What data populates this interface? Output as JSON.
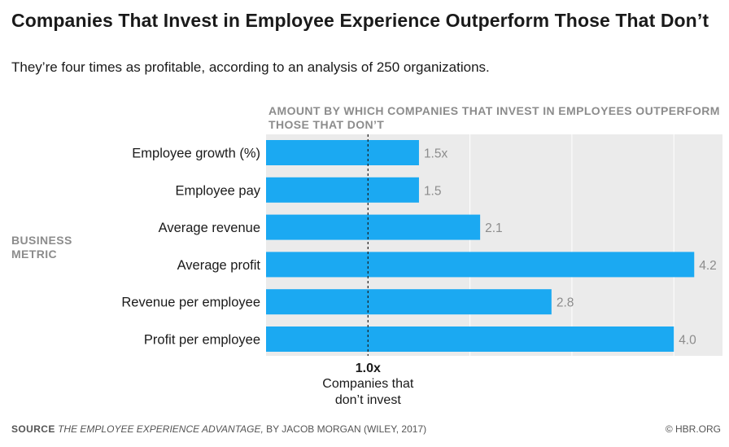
{
  "header": {
    "title": "Companies That Invest in Employee Experience Outperform Those That Don’t",
    "subtitle": "They’re four times as profitable, according to an analysis of 250 organizations."
  },
  "panel_heading": "AMOUNT BY WHICH COMPANIES THAT INVEST IN EMPLOYEES OUTPERFORM THOSE THAT DON’T",
  "y_group_label": "BUSINESS METRIC",
  "chart_data": {
    "type": "bar",
    "orientation": "horizontal",
    "categories": [
      "Employee growth (%)",
      "Employee pay",
      "Average revenue",
      "Average profit",
      "Revenue per employee",
      "Profit per employee"
    ],
    "values": [
      1.5,
      1.5,
      2.1,
      4.2,
      2.8,
      4.0
    ],
    "data_labels": [
      "1.5x",
      "1.5",
      "2.1",
      "4.2",
      "2.8",
      "4.0"
    ],
    "xlim": [
      0,
      4.3
    ],
    "grid": true,
    "baseline": {
      "value": 1.0,
      "label": "1.0x",
      "caption_line1": "Companies that",
      "caption_line2": "don’t invest"
    },
    "colors": {
      "bar": "#1ba9f2",
      "panel": "#ebebeb",
      "gridline": "#ffffff",
      "data_label": "#8c8c8c"
    }
  },
  "footer": {
    "source_key": "SOURCE",
    "source_book": "THE EMPLOYEE EXPERIENCE ADVANTAGE,",
    "source_rest": "BY JACOB MORGAN (WILEY, 2017)",
    "credit": "© HBR.ORG"
  }
}
